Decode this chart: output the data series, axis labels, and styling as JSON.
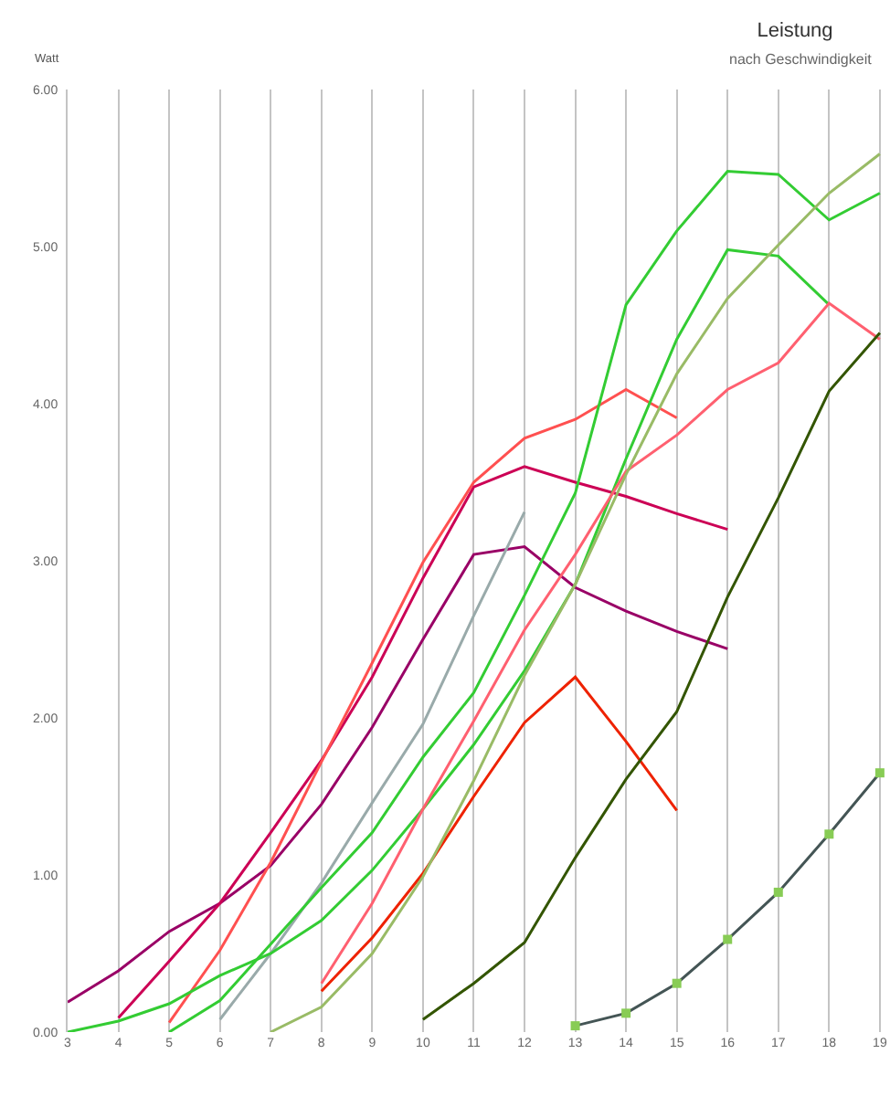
{
  "chart_data": {
    "type": "line",
    "title": "Leistung",
    "subtitle": "nach Geschwindigkeit",
    "ylabel": "Watt",
    "xlim": [
      3,
      19.2
    ],
    "xticks": [
      3,
      4,
      5,
      6,
      7,
      8,
      9,
      10,
      11,
      12,
      13,
      14,
      15,
      16,
      17,
      18,
      19
    ],
    "ylim": [
      0,
      6
    ],
    "yticks": [
      {
        "value": 0,
        "label": "0.00"
      },
      {
        "value": 1,
        "label": "1.00"
      },
      {
        "value": 2,
        "label": "2.00"
      },
      {
        "value": 3,
        "label": "3.00"
      },
      {
        "value": 4,
        "label": "4.00"
      },
      {
        "value": 5,
        "label": "5.00"
      },
      {
        "value": 6,
        "label": "6.00"
      }
    ],
    "grid": "x",
    "series": [
      {
        "color": "#990066",
        "x": [
          3,
          4,
          5,
          6,
          7,
          8,
          9,
          10,
          11,
          12,
          13,
          14,
          15,
          16
        ],
        "values": [
          0.19,
          0.39,
          0.64,
          0.82,
          1.06,
          1.45,
          1.94,
          2.5,
          3.04,
          3.09,
          2.83,
          2.68,
          2.55,
          2.44
        ]
      },
      {
        "color": "#cc0055",
        "x": [
          4,
          5,
          6,
          7,
          8,
          9,
          10,
          11,
          12,
          13,
          14,
          15,
          16
        ],
        "values": [
          0.09,
          0.45,
          0.82,
          1.27,
          1.73,
          2.26,
          2.89,
          3.47,
          3.6,
          3.5,
          3.41,
          3.3,
          3.2
        ]
      },
      {
        "color": "#ff5050",
        "x": [
          5,
          6,
          7,
          8,
          9,
          10,
          11,
          12,
          13,
          14,
          15
        ],
        "values": [
          0.06,
          0.52,
          1.08,
          1.72,
          2.35,
          2.99,
          3.5,
          3.78,
          3.9,
          4.09,
          3.91
        ]
      },
      {
        "color": "#99aaaa",
        "x": [
          6,
          7,
          8,
          9,
          10,
          11,
          12
        ],
        "values": [
          0.08,
          0.5,
          0.95,
          1.46,
          1.96,
          2.65,
          3.31
        ]
      },
      {
        "color": "#33cc33",
        "x": [
          3,
          4,
          5,
          6,
          7,
          8,
          9,
          10,
          11,
          12,
          13,
          14,
          15,
          16,
          17,
          18
        ],
        "values": [
          0.0,
          0.07,
          0.18,
          0.36,
          0.5,
          0.71,
          1.03,
          1.42,
          1.83,
          2.3,
          2.85,
          3.65,
          4.41,
          4.98,
          4.94,
          4.63
        ]
      },
      {
        "color": "#33cc33",
        "x": [
          5,
          6,
          7,
          8,
          9,
          10,
          11,
          12,
          13,
          14,
          15,
          16,
          17,
          18,
          19
        ],
        "values": [
          0.0,
          0.2,
          0.56,
          0.92,
          1.27,
          1.75,
          2.16,
          2.78,
          3.43,
          4.63,
          5.1,
          5.48,
          5.46,
          5.17,
          5.34
        ]
      },
      {
        "color": "#ff6070",
        "x": [
          8,
          9,
          10,
          11,
          12,
          13,
          14,
          15,
          16,
          17,
          18,
          19
        ],
        "values": [
          0.31,
          0.82,
          1.42,
          1.98,
          2.56,
          3.04,
          3.57,
          3.8,
          4.09,
          4.26,
          4.64,
          4.41
        ]
      },
      {
        "color": "#ee2200",
        "x": [
          8,
          9,
          10,
          11,
          12,
          13,
          14,
          15
        ],
        "values": [
          0.26,
          0.6,
          1.01,
          1.5,
          1.97,
          2.26,
          1.85,
          1.41
        ]
      },
      {
        "color": "#99bb66",
        "x": [
          7,
          8,
          9,
          10,
          11,
          12,
          13,
          14,
          15,
          16,
          17,
          18,
          19
        ],
        "values": [
          0.0,
          0.16,
          0.5,
          0.99,
          1.6,
          2.27,
          2.85,
          3.55,
          4.19,
          4.67,
          5.01,
          5.34,
          5.59
        ]
      },
      {
        "color": "#335500",
        "x": [
          10,
          11,
          12,
          13,
          14,
          15,
          16,
          17,
          18,
          19
        ],
        "values": [
          0.08,
          0.31,
          0.57,
          1.11,
          1.61,
          2.04,
          2.77,
          3.4,
          4.08,
          4.45
        ]
      },
      {
        "color": "#445555",
        "marker": "square",
        "x": [
          13,
          14,
          15,
          16,
          17,
          18,
          19
        ],
        "values": [
          0.04,
          0.12,
          0.31,
          0.59,
          0.89,
          1.26,
          1.65
        ]
      }
    ]
  }
}
